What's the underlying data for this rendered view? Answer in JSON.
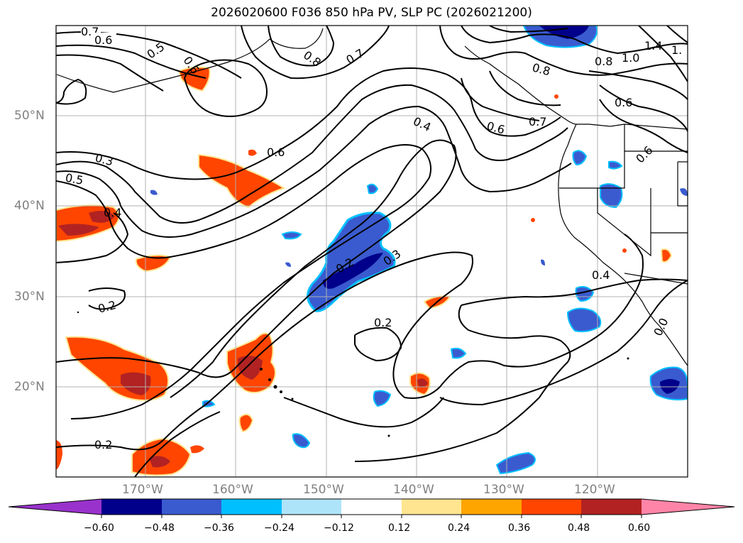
{
  "title": "2026020600 F036 850 hPa PV, SLP PC (2026021200)",
  "map": {
    "lat_labels": [
      "50°N",
      "40°N",
      "30°N",
      "20°N"
    ],
    "lon_labels": [
      "170°W",
      "160°W",
      "150°W",
      "140°W",
      "130°W",
      "120°W"
    ],
    "contour_labels": [
      "0.7",
      "0.6",
      "0.5",
      "0.6",
      "0.8",
      "0.7",
      "1.4",
      "1.",
      "1.0",
      "0.8",
      "0.8",
      "0.6",
      "0.4",
      "0.6",
      "0.7",
      "0.6",
      "0.6",
      "0.3",
      "0.5",
      "0.4",
      "0.2",
      "0.3",
      "0.4",
      "0.2",
      "0.2",
      "0.2",
      "0.0"
    ],
    "colors": {
      "land": "#000000",
      "contour": "#000000",
      "grid": "#b0b0b0"
    }
  },
  "colorbar": {
    "ticks": [
      "−0.60",
      "−0.48",
      "−0.36",
      "−0.24",
      "−0.12",
      "0.12",
      "0.24",
      "0.36",
      "0.48",
      "0.60"
    ],
    "colors": [
      "#9932cc",
      "#00008b",
      "#3a5bcf",
      "#00bfff",
      "#aee4fa",
      "#ffffff",
      "#ffe58f",
      "#ffa500",
      "#ff4500",
      "#b22222",
      "#ff85a8"
    ]
  }
}
